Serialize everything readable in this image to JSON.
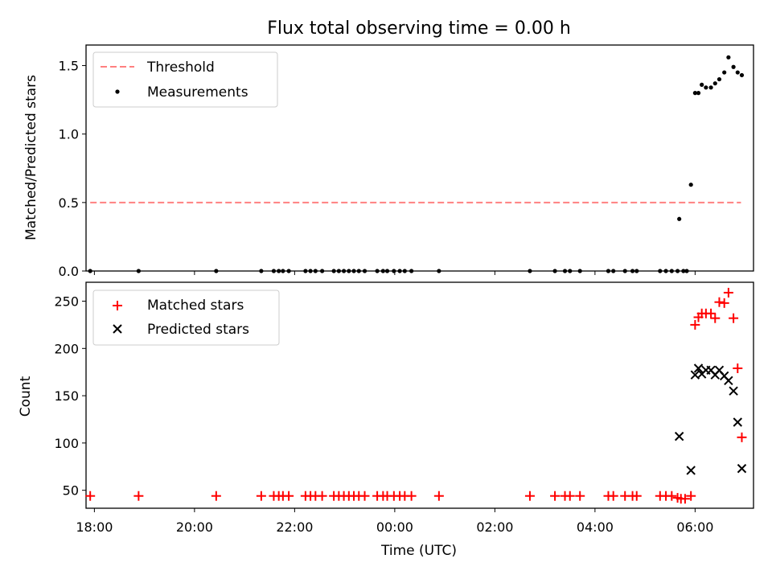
{
  "chart_data": [
    {
      "type": "scatter",
      "title": "Flux total observing time = 0.00 h",
      "xlabel": "",
      "ylabel": "Matched/Predicted stars",
      "xlim": [
        "17:50",
        "07:10"
      ],
      "ylim": [
        0.0,
        1.65
      ],
      "yticks": [
        "0.0",
        "0.5",
        "1.0",
        "1.5"
      ],
      "legend_position": "upper-left",
      "grid": false,
      "threshold": {
        "name": "Threshold",
        "value": 0.5,
        "x_start": "17:55",
        "x_end": "06:55",
        "color": "#ff8080"
      },
      "series": [
        {
          "name": "Measurements",
          "marker": "dot",
          "color": "#000000",
          "points": [
            [
              "17:55",
              0.0
            ],
            [
              "18:53",
              0.0
            ],
            [
              "20:26",
              0.0
            ],
            [
              "21:20",
              0.0
            ],
            [
              "21:35",
              0.0
            ],
            [
              "21:41",
              0.0
            ],
            [
              "21:46",
              0.0
            ],
            [
              "21:53",
              0.0
            ],
            [
              "22:13",
              0.0
            ],
            [
              "22:19",
              0.0
            ],
            [
              "22:25",
              0.0
            ],
            [
              "22:33",
              0.0
            ],
            [
              "22:47",
              0.0
            ],
            [
              "22:53",
              0.0
            ],
            [
              "22:59",
              0.0
            ],
            [
              "23:05",
              0.0
            ],
            [
              "23:11",
              0.0
            ],
            [
              "23:17",
              0.0
            ],
            [
              "23:24",
              0.0
            ],
            [
              "23:39",
              0.0
            ],
            [
              "23:46",
              0.0
            ],
            [
              "23:51",
              0.0
            ],
            [
              "23:59",
              0.0
            ],
            [
              "00:06",
              0.0
            ],
            [
              "00:12",
              0.0
            ],
            [
              "00:20",
              0.0
            ],
            [
              "00:53",
              0.0
            ],
            [
              "02:42",
              0.0
            ],
            [
              "03:12",
              0.0
            ],
            [
              "03:24",
              0.0
            ],
            [
              "03:30",
              0.0
            ],
            [
              "03:42",
              0.0
            ],
            [
              "04:16",
              0.0
            ],
            [
              "04:22",
              0.0
            ],
            [
              "04:36",
              0.0
            ],
            [
              "04:45",
              0.0
            ],
            [
              "04:50",
              0.0
            ],
            [
              "05:18",
              0.0
            ],
            [
              "05:25",
              0.0
            ],
            [
              "05:32",
              0.0
            ],
            [
              "05:39",
              0.0
            ],
            [
              "05:41",
              0.38
            ],
            [
              "05:46",
              0.0
            ],
            [
              "05:50",
              0.0
            ],
            [
              "05:55",
              0.63
            ],
            [
              "06:00",
              1.3
            ],
            [
              "06:04",
              1.3
            ],
            [
              "06:08",
              1.36
            ],
            [
              "06:13",
              1.34
            ],
            [
              "06:19",
              1.34
            ],
            [
              "06:24",
              1.37
            ],
            [
              "06:29",
              1.4
            ],
            [
              "06:35",
              1.45
            ],
            [
              "06:40",
              1.56
            ],
            [
              "06:46",
              1.49
            ],
            [
              "06:51",
              1.45
            ],
            [
              "06:56",
              1.43
            ]
          ]
        }
      ]
    },
    {
      "type": "scatter",
      "title": "",
      "xlabel": "Time (UTC)",
      "ylabel": "Count",
      "xlim": [
        "17:50",
        "07:10"
      ],
      "ylim": [
        31,
        270
      ],
      "yticks": [
        "50",
        "100",
        "150",
        "200",
        "250"
      ],
      "xticks": [
        "18:00",
        "20:00",
        "22:00",
        "00:00",
        "02:00",
        "04:00",
        "06:00"
      ],
      "legend_position": "upper-left",
      "grid": false,
      "series": [
        {
          "name": "Matched stars",
          "marker": "plus",
          "color": "#ff0000",
          "points": [
            [
              "17:55",
              44
            ],
            [
              "18:53",
              44
            ],
            [
              "20:26",
              44
            ],
            [
              "21:20",
              44
            ],
            [
              "21:35",
              44
            ],
            [
              "21:41",
              44
            ],
            [
              "21:46",
              44
            ],
            [
              "21:53",
              44
            ],
            [
              "22:13",
              44
            ],
            [
              "22:19",
              44
            ],
            [
              "22:25",
              44
            ],
            [
              "22:33",
              44
            ],
            [
              "22:47",
              44
            ],
            [
              "22:53",
              44
            ],
            [
              "22:59",
              44
            ],
            [
              "23:05",
              44
            ],
            [
              "23:11",
              44
            ],
            [
              "23:17",
              44
            ],
            [
              "23:24",
              44
            ],
            [
              "23:39",
              44
            ],
            [
              "23:46",
              44
            ],
            [
              "23:51",
              44
            ],
            [
              "23:59",
              44
            ],
            [
              "00:06",
              44
            ],
            [
              "00:12",
              44
            ],
            [
              "00:20",
              44
            ],
            [
              "00:53",
              44
            ],
            [
              "02:42",
              44
            ],
            [
              "03:12",
              44
            ],
            [
              "03:24",
              44
            ],
            [
              "03:30",
              44
            ],
            [
              "03:42",
              44
            ],
            [
              "04:16",
              44
            ],
            [
              "04:22",
              44
            ],
            [
              "04:36",
              44
            ],
            [
              "04:45",
              44
            ],
            [
              "04:50",
              44
            ],
            [
              "05:18",
              44
            ],
            [
              "05:25",
              44
            ],
            [
              "05:32",
              44
            ],
            [
              "05:39",
              42
            ],
            [
              "05:43",
              41
            ],
            [
              "05:48",
              41
            ],
            [
              "05:55",
              44
            ],
            [
              "06:00",
              225
            ],
            [
              "06:04",
              233
            ],
            [
              "06:08",
              237
            ],
            [
              "06:13",
              237
            ],
            [
              "06:19",
              237
            ],
            [
              "06:24",
              232
            ],
            [
              "06:29",
              249
            ],
            [
              "06:35",
              248
            ],
            [
              "06:40",
              259
            ],
            [
              "06:46",
              232
            ],
            [
              "06:51",
              179
            ],
            [
              "06:56",
              106
            ]
          ]
        },
        {
          "name": "Predicted stars",
          "marker": "x",
          "color": "#000000",
          "points": [
            [
              "05:41",
              107
            ],
            [
              "05:55",
              71
            ],
            [
              "06:00",
              172
            ],
            [
              "06:04",
              179
            ],
            [
              "06:08",
              173
            ],
            [
              "06:13",
              177
            ],
            [
              "06:19",
              177
            ],
            [
              "06:24",
              172
            ],
            [
              "06:29",
              177
            ],
            [
              "06:35",
              171
            ],
            [
              "06:40",
              166
            ],
            [
              "06:46",
              155
            ],
            [
              "06:51",
              122
            ],
            [
              "06:56",
              73
            ]
          ]
        }
      ]
    }
  ]
}
